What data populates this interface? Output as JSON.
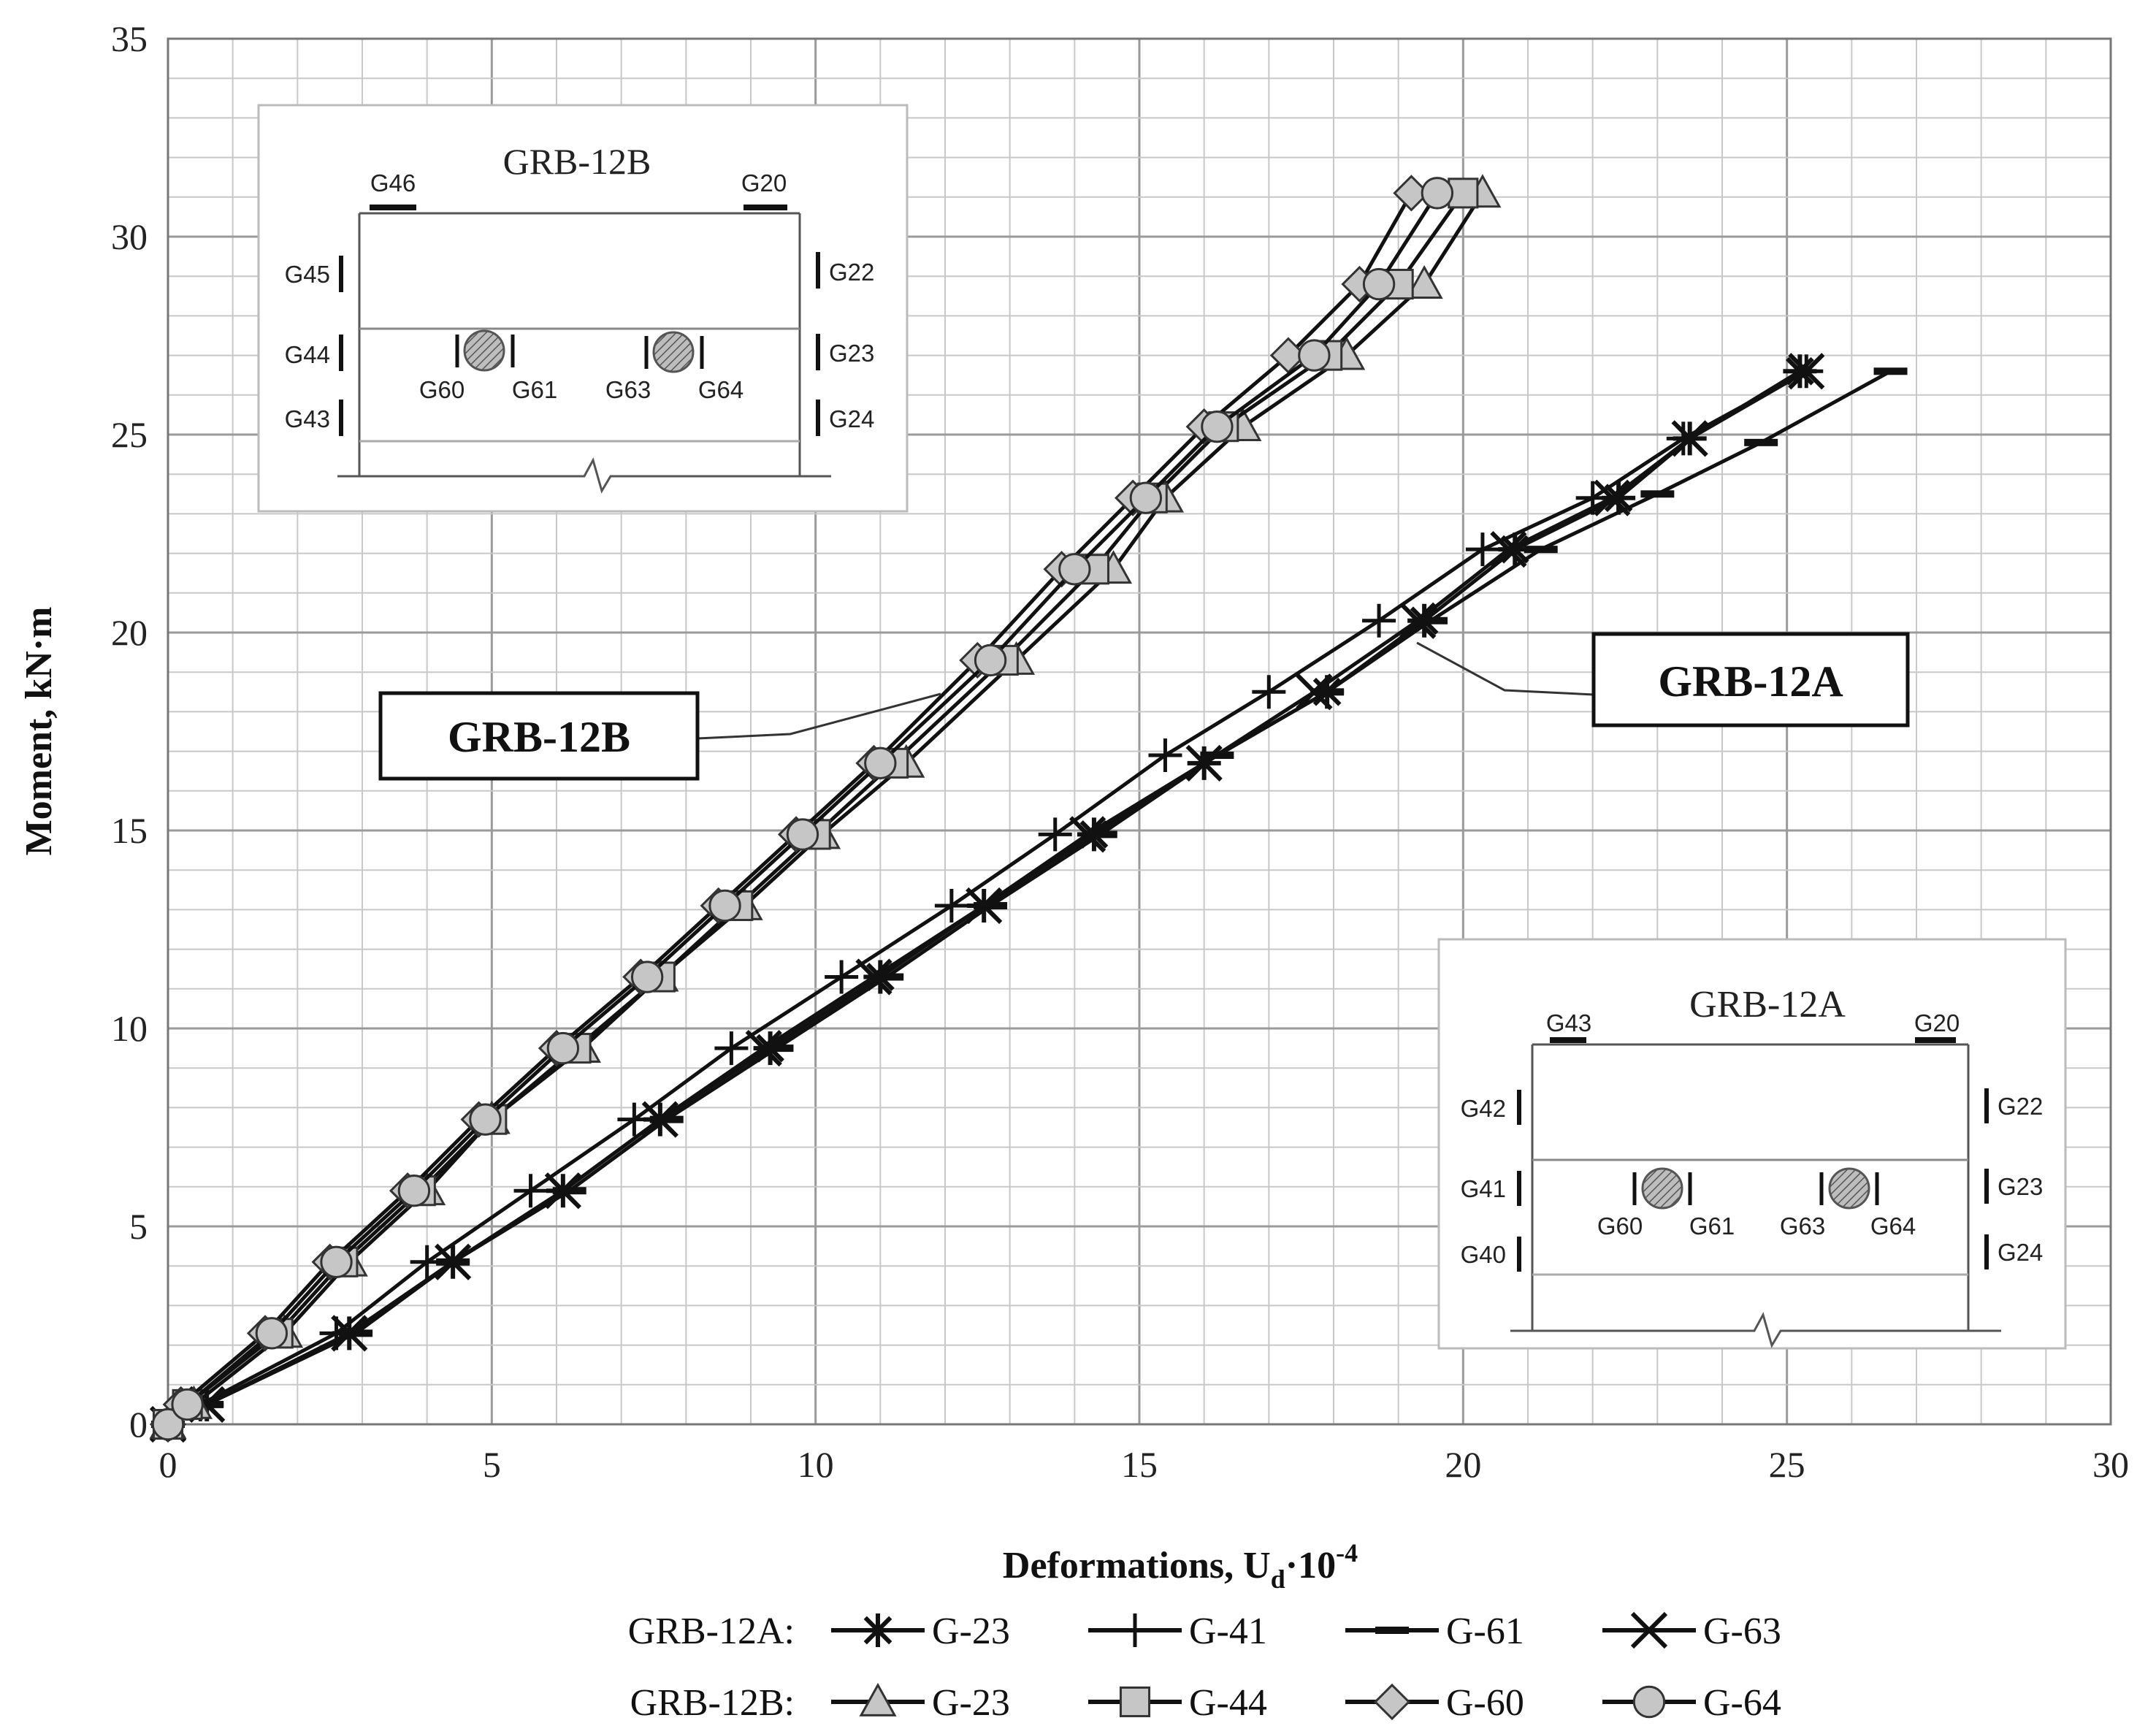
{
  "chart_data": {
    "type": "line",
    "xlabel": "Deformations, U",
    "xlabel_sub": "d",
    "xlabel_tail": "·10",
    "xlabel_sup": "-4",
    "ylabel": "Moment, kN·m",
    "xlim": [
      0,
      30
    ],
    "ylim": [
      0,
      35
    ],
    "xticks": [
      "0",
      "5",
      "10",
      "15",
      "20",
      "25",
      "30"
    ],
    "yticks": [
      "0",
      "5",
      "10",
      "15",
      "20",
      "25",
      "30",
      "35"
    ],
    "grid": true,
    "legend_position": "bottom",
    "legend_groups": [
      "GRB-12A:",
      "GRB-12B:"
    ],
    "callouts": [
      "GRB-12B",
      "GRB-12A"
    ],
    "series": [
      {
        "name": "G-23",
        "group": "GRB-12A",
        "marker": "asterisk",
        "x": [
          0,
          0.6,
          2.8,
          4.4,
          6.1,
          7.6,
          9.3,
          11.0,
          12.6,
          14.3,
          16.0,
          17.9,
          19.4,
          20.8,
          22.4,
          23.5,
          25.2
        ],
        "y": [
          0,
          0.5,
          2.3,
          4.1,
          5.9,
          7.7,
          9.5,
          11.3,
          13.1,
          14.9,
          16.7,
          18.5,
          20.3,
          22.1,
          23.4,
          24.9,
          26.6
        ]
      },
      {
        "name": "G-41",
        "group": "GRB-12A",
        "marker": "plus",
        "x": [
          0,
          0.5,
          2.6,
          4.0,
          5.6,
          7.2,
          8.7,
          10.4,
          12.1,
          13.7,
          15.4,
          17.0,
          18.7,
          20.3,
          22.0,
          23.4,
          25.3
        ],
        "y": [
          0,
          0.5,
          2.3,
          4.1,
          5.9,
          7.7,
          9.5,
          11.3,
          13.1,
          14.9,
          16.9,
          18.5,
          20.3,
          22.1,
          23.4,
          24.9,
          26.6
        ]
      },
      {
        "name": "G-61",
        "group": "GRB-12A",
        "marker": "dash",
        "x": [
          0,
          0.6,
          2.9,
          4.4,
          6.2,
          7.7,
          9.4,
          11.1,
          12.7,
          14.4,
          16.2,
          17.9,
          19.5,
          21.2,
          23.0,
          24.6,
          26.6
        ],
        "y": [
          0,
          0.5,
          2.3,
          4.1,
          5.9,
          7.7,
          9.5,
          11.3,
          13.1,
          14.9,
          16.9,
          18.5,
          20.3,
          22.1,
          23.5,
          24.8,
          26.6
        ]
      },
      {
        "name": "G-63",
        "group": "GRB-12A",
        "marker": "cross",
        "x": [
          0,
          0.6,
          2.8,
          4.4,
          6.1,
          7.6,
          9.2,
          10.9,
          12.6,
          14.2,
          16.0,
          17.7,
          19.3,
          20.7,
          22.3,
          23.5,
          25.3
        ],
        "y": [
          0,
          0.5,
          2.3,
          4.1,
          5.9,
          7.7,
          9.5,
          11.3,
          13.1,
          14.9,
          16.7,
          18.5,
          20.3,
          22.1,
          23.4,
          24.9,
          26.6
        ]
      },
      {
        "name": "G-23",
        "group": "GRB-12B",
        "marker": "triangle",
        "x": [
          0,
          0.4,
          1.8,
          2.8,
          4.0,
          5.0,
          6.4,
          7.6,
          8.9,
          10.1,
          11.4,
          13.1,
          14.6,
          15.4,
          16.6,
          18.2,
          19.4,
          20.3
        ],
        "y": [
          0,
          0.5,
          2.3,
          4.1,
          5.9,
          7.7,
          9.5,
          11.3,
          13.1,
          14.9,
          16.7,
          19.3,
          21.6,
          23.4,
          25.2,
          27.0,
          28.8,
          31.1
        ]
      },
      {
        "name": "G-44",
        "group": "GRB-12B",
        "marker": "square",
        "x": [
          0,
          0.3,
          1.7,
          2.7,
          3.9,
          5.0,
          6.3,
          7.6,
          8.8,
          10.0,
          11.2,
          12.9,
          14.3,
          15.2,
          16.3,
          17.9,
          19.0,
          20.0
        ],
        "y": [
          0,
          0.5,
          2.3,
          4.1,
          5.9,
          7.7,
          9.5,
          11.3,
          13.1,
          14.9,
          16.7,
          19.3,
          21.6,
          23.4,
          25.2,
          27.0,
          28.8,
          31.1
        ]
      },
      {
        "name": "G-60",
        "group": "GRB-12B",
        "marker": "diamond",
        "x": [
          0,
          0.2,
          1.5,
          2.5,
          3.7,
          4.8,
          6.0,
          7.3,
          8.5,
          9.7,
          10.9,
          12.5,
          13.8,
          14.9,
          16.0,
          17.3,
          18.4,
          19.2
        ],
        "y": [
          0,
          0.5,
          2.3,
          4.1,
          5.9,
          7.7,
          9.5,
          11.3,
          13.1,
          14.9,
          16.7,
          19.3,
          21.6,
          23.4,
          25.2,
          27.0,
          28.8,
          31.1
        ]
      },
      {
        "name": "G-64",
        "group": "GRB-12B",
        "marker": "circle",
        "x": [
          0,
          0.3,
          1.6,
          2.6,
          3.8,
          4.9,
          6.1,
          7.4,
          8.6,
          9.8,
          11.0,
          12.7,
          14.0,
          15.1,
          16.2,
          17.7,
          18.7,
          19.6
        ],
        "y": [
          0,
          0.5,
          2.3,
          4.1,
          5.9,
          7.7,
          9.5,
          11.3,
          13.1,
          14.9,
          16.7,
          19.3,
          21.6,
          23.4,
          25.2,
          27.0,
          28.8,
          31.1
        ]
      }
    ]
  },
  "insets": [
    {
      "title": "GRB-12B",
      "top_gauges": [
        "G46",
        "G20"
      ],
      "left_gauges": [
        "G45",
        "G44",
        "G43"
      ],
      "right_gauges": [
        "G22",
        "G23",
        "G24"
      ],
      "bar_gauges": [
        "G60",
        "G61",
        "G63",
        "G64"
      ]
    },
    {
      "title": "GRB-12A",
      "top_gauges": [
        "G43",
        "G20"
      ],
      "left_gauges": [
        "G42",
        "G41",
        "G40"
      ],
      "right_gauges": [
        "G22",
        "G23",
        "G24"
      ],
      "bar_gauges": [
        "G60",
        "G61",
        "G63",
        "G64"
      ]
    }
  ]
}
